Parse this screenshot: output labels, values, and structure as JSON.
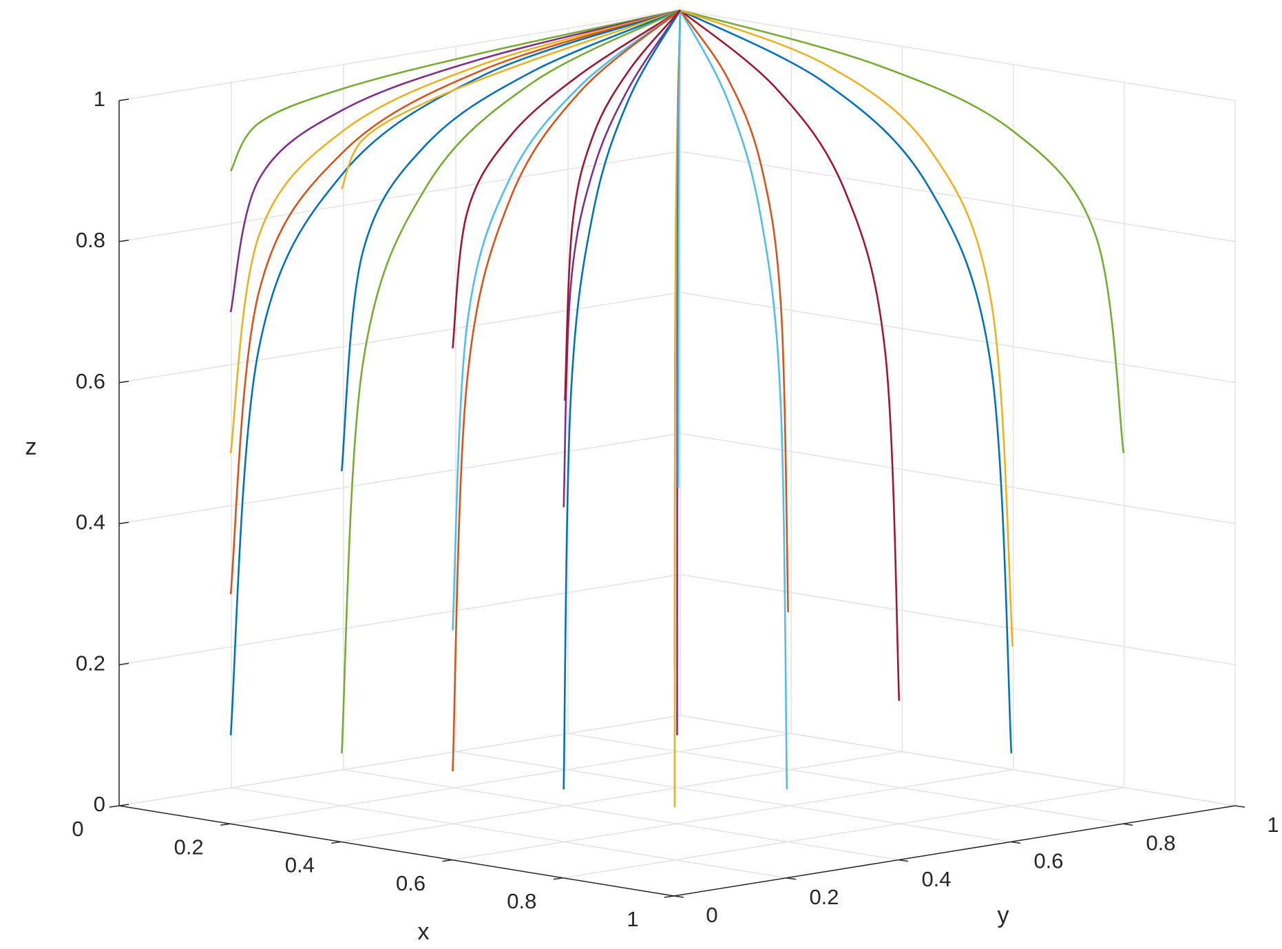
{
  "chart_data": {
    "type": "line3d",
    "xlabel": "x",
    "ylabel": "y",
    "zlabel": "z",
    "xlim": [
      0,
      1
    ],
    "ylim": [
      0,
      1
    ],
    "zlim": [
      0,
      1
    ],
    "xticks": [
      0,
      0.2,
      0.4,
      0.6,
      0.8,
      1
    ],
    "yticks": [
      0,
      0.2,
      0.4,
      0.6,
      0.8,
      1
    ],
    "zticks": [
      0,
      0.2,
      0.4,
      0.6,
      0.8,
      1
    ],
    "grid": true,
    "series": [
      {
        "color": "#77AC30",
        "x": [
          0.1,
          0.094,
          0.075,
          0.044,
          0
        ],
        "y": [
          0.1,
          0.156,
          0.325,
          0.606,
          1
        ],
        "z": [
          0.9,
          0.96,
          0.985,
          0.996,
          1
        ]
      },
      {
        "color": "#7E2F8E",
        "x": [
          0.1,
          0.094,
          0.075,
          0.044,
          0
        ],
        "y": [
          0.1,
          0.156,
          0.325,
          0.606,
          1
        ],
        "z": [
          0.7,
          0.88,
          0.955,
          0.988,
          1
        ]
      },
      {
        "color": "#EDB120",
        "x": [
          0.1,
          0.094,
          0.075,
          0.044,
          0
        ],
        "y": [
          0.1,
          0.156,
          0.325,
          0.606,
          1
        ],
        "z": [
          0.5,
          0.8,
          0.925,
          0.98,
          1
        ]
      },
      {
        "color": "#D95319",
        "x": [
          0.1,
          0.094,
          0.075,
          0.044,
          0
        ],
        "y": [
          0.1,
          0.156,
          0.325,
          0.606,
          1
        ],
        "z": [
          0.3,
          0.72,
          0.895,
          0.972,
          1
        ]
      },
      {
        "color": "#0072BD",
        "x": [
          0.1,
          0.094,
          0.075,
          0.044,
          0
        ],
        "y": [
          0.1,
          0.156,
          0.325,
          0.606,
          1
        ],
        "z": [
          0.1,
          0.64,
          0.865,
          0.964,
          1
        ]
      },
      {
        "color": "#EDB120",
        "x": [
          0.3,
          0.281,
          0.225,
          0.131,
          0
        ],
        "y": [
          0.1,
          0.156,
          0.325,
          0.606,
          1
        ],
        "z": [
          0.9,
          0.96,
          0.985,
          0.996,
          1
        ]
      },
      {
        "color": "#0072BD",
        "x": [
          0.3,
          0.281,
          0.225,
          0.131,
          0
        ],
        "y": [
          0.1,
          0.156,
          0.325,
          0.606,
          1
        ],
        "z": [
          0.5,
          0.8,
          0.925,
          0.98,
          1
        ]
      },
      {
        "color": "#77AC30",
        "x": [
          0.3,
          0.281,
          0.225,
          0.131,
          0
        ],
        "y": [
          0.1,
          0.156,
          0.325,
          0.606,
          1
        ],
        "z": [
          0.1,
          0.64,
          0.865,
          0.964,
          1
        ]
      },
      {
        "color": "#A2142F",
        "x": [
          0.5,
          0.469,
          0.375,
          0.219,
          0
        ],
        "y": [
          0.1,
          0.156,
          0.325,
          0.606,
          1
        ],
        "z": [
          0.7,
          0.88,
          0.955,
          0.988,
          1
        ]
      },
      {
        "color": "#4DBEEE",
        "x": [
          0.5,
          0.469,
          0.375,
          0.219,
          0
        ],
        "y": [
          0.1,
          0.156,
          0.325,
          0.606,
          1
        ],
        "z": [
          0.3,
          0.72,
          0.895,
          0.972,
          1
        ]
      },
      {
        "color": "#D95319",
        "x": [
          0.5,
          0.469,
          0.375,
          0.219,
          0
        ],
        "y": [
          0.1,
          0.156,
          0.325,
          0.606,
          1
        ],
        "z": [
          0.1,
          0.64,
          0.865,
          0.964,
          1
        ]
      },
      {
        "color": "#7E2F8E",
        "x": [
          0.7,
          0.656,
          0.525,
          0.306,
          0
        ],
        "y": [
          0.1,
          0.156,
          0.325,
          0.606,
          1
        ],
        "z": [
          0.5,
          0.8,
          0.925,
          0.98,
          1
        ]
      },
      {
        "color": "#0072BD",
        "x": [
          0.7,
          0.656,
          0.525,
          0.306,
          0
        ],
        "y": [
          0.1,
          0.156,
          0.325,
          0.606,
          1
        ],
        "z": [
          0.1,
          0.64,
          0.865,
          0.964,
          1
        ]
      },
      {
        "color": "#77AC30",
        "x": [
          0.9,
          0.844,
          0.675,
          0.394,
          0
        ],
        "y": [
          0.1,
          0.156,
          0.325,
          0.606,
          1
        ],
        "z": [
          0.3,
          0.72,
          0.895,
          0.972,
          1
        ]
      },
      {
        "color": "#EDB120",
        "x": [
          0.9,
          0.844,
          0.675,
          0.394,
          0
        ],
        "y": [
          0.1,
          0.156,
          0.325,
          0.606,
          1
        ],
        "z": [
          0.1,
          0.64,
          0.865,
          0.964,
          1
        ]
      },
      {
        "color": "#4DBEEE",
        "x": [
          0.9,
          0.844,
          0.675,
          0.394,
          0
        ],
        "y": [
          0.3,
          0.344,
          0.475,
          0.694,
          1
        ],
        "z": [
          0.1,
          0.64,
          0.865,
          0.964,
          1
        ]
      },
      {
        "color": "#A2142F",
        "x": [
          0.9,
          0.844,
          0.675,
          0.394,
          0
        ],
        "y": [
          0.5,
          0.531,
          0.625,
          0.781,
          1
        ],
        "z": [
          0.2,
          0.68,
          0.88,
          0.968,
          1
        ]
      },
      {
        "color": "#0072BD",
        "x": [
          0.9,
          0.844,
          0.675,
          0.394,
          0
        ],
        "y": [
          0.7,
          0.719,
          0.775,
          0.869,
          1
        ],
        "z": [
          0.1,
          0.64,
          0.865,
          0.964,
          1
        ]
      },
      {
        "color": "#77AC30",
        "x": [
          0.9,
          0.844,
          0.675,
          0.394,
          0
        ],
        "y": [
          0.9,
          0.906,
          0.925,
          0.956,
          1
        ],
        "z": [
          0.5,
          0.8,
          0.925,
          0.98,
          1
        ]
      },
      {
        "color": "#D95319",
        "x": [
          0.7,
          0.656,
          0.525,
          0.306,
          0
        ],
        "y": [
          0.5,
          0.531,
          0.625,
          0.781,
          1
        ],
        "z": [
          0.3,
          0.72,
          0.895,
          0.972,
          1
        ]
      },
      {
        "color": "#7E2F8E",
        "x": [
          0.5,
          0.469,
          0.375,
          0.219,
          0
        ],
        "y": [
          0.5,
          0.531,
          0.625,
          0.781,
          1
        ],
        "z": [
          0.1,
          0.64,
          0.865,
          0.964,
          1
        ]
      },
      {
        "color": "#EDB120",
        "x": [
          0.7,
          0.656,
          0.525,
          0.306,
          0
        ],
        "y": [
          0.9,
          0.906,
          0.925,
          0.956,
          1
        ],
        "z": [
          0.2,
          0.68,
          0.88,
          0.968,
          1
        ]
      },
      {
        "color": "#4DBEEE",
        "x": [
          0.3,
          0.281,
          0.225,
          0.131,
          0
        ],
        "y": [
          0.7,
          0.719,
          0.775,
          0.869,
          1
        ],
        "z": [
          0.4,
          0.76,
          0.91,
          0.976,
          1
        ]
      },
      {
        "color": "#A2142F",
        "x": [
          0.5,
          0.469,
          0.375,
          0.219,
          0
        ],
        "y": [
          0.3,
          0.344,
          0.475,
          0.694,
          1
        ],
        "z": [
          0.6,
          0.84,
          0.94,
          0.984,
          1
        ]
      }
    ]
  }
}
